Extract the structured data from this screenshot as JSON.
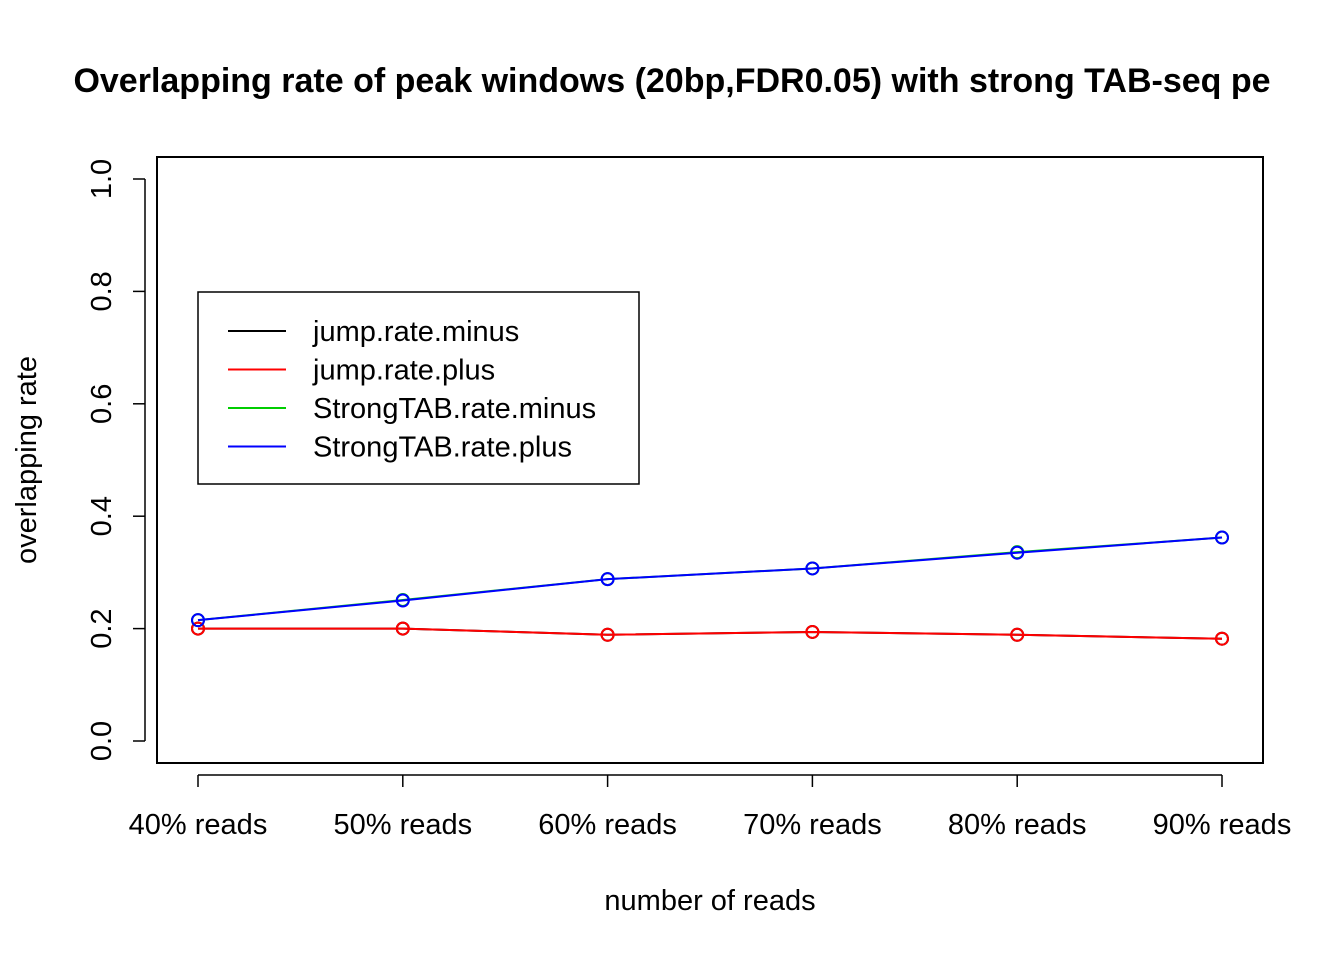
{
  "chart_data": {
    "type": "line",
    "title": "Overlapping rate of peak windows (20bp,FDR0.05) with strong TAB-seq pe",
    "xlabel": "number of reads",
    "ylabel": "overlapping rate",
    "categories": [
      "40% reads",
      "50% reads",
      "60% reads",
      "70% reads",
      "80% reads",
      "90% reads"
    ],
    "ylim": [
      0.0,
      1.0
    ],
    "yticks": [
      "0.0",
      "0.2",
      "0.4",
      "0.6",
      "0.8",
      "1.0"
    ],
    "grid": false,
    "legend_position": "top-left",
    "series": [
      {
        "name": "jump.rate.minus",
        "color": "#000000",
        "values": [
          0.2,
          0.2,
          0.189,
          0.194,
          0.189,
          0.182
        ]
      },
      {
        "name": "jump.rate.plus",
        "color": "#ff0000",
        "values": [
          0.2,
          0.2,
          0.189,
          0.194,
          0.189,
          0.182
        ]
      },
      {
        "name": "StrongTAB.rate.minus",
        "color": "#00cd00",
        "values": [
          0.215,
          0.251,
          0.288,
          0.307,
          0.336,
          0.362
        ]
      },
      {
        "name": "StrongTAB.rate.plus",
        "color": "#0000ff",
        "values": [
          0.215,
          0.25,
          0.288,
          0.307,
          0.335,
          0.362
        ]
      }
    ]
  }
}
